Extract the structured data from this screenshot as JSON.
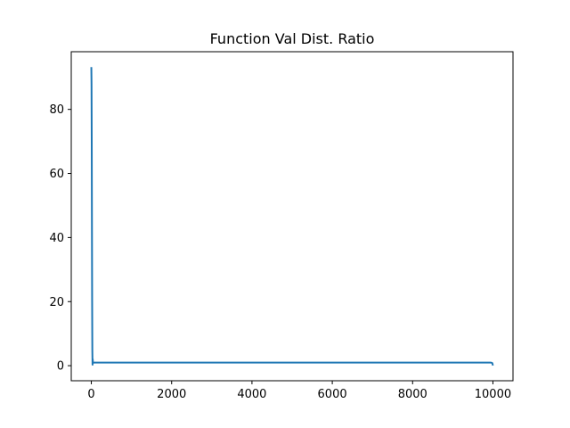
{
  "chart_data": {
    "type": "line",
    "title": "Function Val Dist. Ratio",
    "xlabel": "",
    "ylabel": "",
    "xlim": [
      -500,
      10500
    ],
    "ylim": [
      -4.7,
      98
    ],
    "xticks": [
      0,
      2000,
      4000,
      6000,
      8000,
      10000
    ],
    "xtick_labels": [
      "0",
      "2000",
      "4000",
      "6000",
      "8000",
      "10000"
    ],
    "yticks": [
      0,
      20,
      40,
      60,
      80
    ],
    "ytick_labels": [
      "0",
      "20",
      "40",
      "60",
      "80"
    ],
    "grid": false,
    "series": [
      {
        "color": "#1f77b4",
        "x": [
          0,
          5,
          10,
          15,
          20,
          25,
          30,
          35,
          40,
          45,
          50,
          60,
          80,
          100,
          500,
          1000,
          2000,
          3000,
          4000,
          5000,
          6000,
          7000,
          8000,
          9000,
          9950,
          9970,
          9985,
          10000
        ],
        "y": [
          93.2,
          88,
          70,
          45,
          20,
          5,
          0.3,
          2,
          0.9,
          1.1,
          1.0,
          0.95,
          0.98,
          0.97,
          0.97,
          0.97,
          0.96,
          0.96,
          0.96,
          0.96,
          0.96,
          0.96,
          0.96,
          0.96,
          0.96,
          0.9,
          0.8,
          0.05
        ]
      }
    ]
  }
}
